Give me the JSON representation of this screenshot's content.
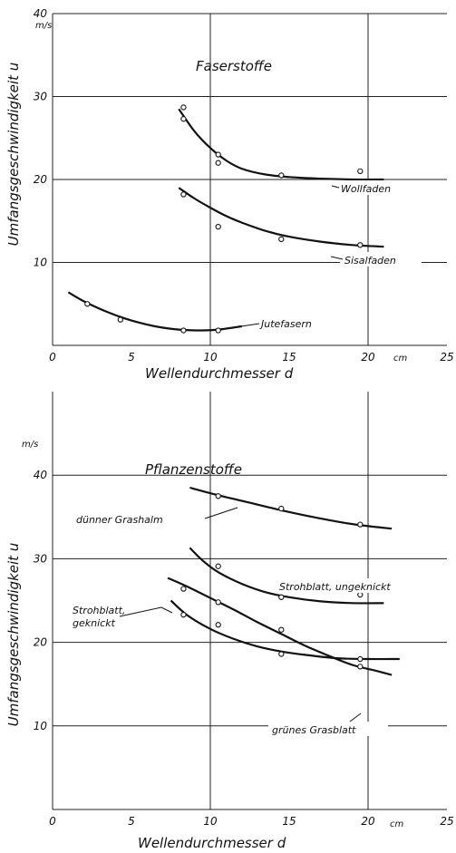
{
  "chart_data": [
    {
      "type": "line",
      "title": "Faserstoffe",
      "xlabel": "Wellendurchmesser d",
      "xunit": "cm",
      "ylabel": "Umfangsgeschwindigkeit u",
      "yunit": "m/s",
      "xlim": [
        0,
        25
      ],
      "ylim": [
        0,
        40
      ],
      "xticks": [
        "0",
        "5",
        "10",
        "15",
        "20",
        "25"
      ],
      "yticks": [
        "10",
        "20",
        "30",
        "40"
      ],
      "grid": true,
      "series": [
        {
          "name": "Wollfaden",
          "curve": [
            [
              8.0,
              28.5
            ],
            [
              9.0,
              25.8
            ],
            [
              10.0,
              23.8
            ],
            [
              11.0,
              22.3
            ],
            [
              12.0,
              21.3
            ],
            [
              13.5,
              20.6
            ],
            [
              15.0,
              20.3
            ],
            [
              17.0,
              20.1
            ],
            [
              19.0,
              20.0
            ],
            [
              21.0,
              20.0
            ]
          ],
          "points": [
            [
              8.3,
              28.7
            ],
            [
              8.3,
              27.3
            ],
            [
              10.5,
              23.0
            ],
            [
              10.5,
              22.0
            ],
            [
              14.5,
              20.5
            ],
            [
              19.5,
              21.0
            ]
          ]
        },
        {
          "name": "Sisalfaden",
          "curve": [
            [
              8.0,
              19.0
            ],
            [
              9.0,
              17.7
            ],
            [
              10.0,
              16.6
            ],
            [
              11.0,
              15.6
            ],
            [
              12.0,
              14.8
            ],
            [
              13.5,
              13.8
            ],
            [
              15.0,
              13.1
            ],
            [
              17.0,
              12.5
            ],
            [
              19.0,
              12.1
            ],
            [
              21.0,
              11.9
            ]
          ],
          "points": [
            [
              8.3,
              18.2
            ],
            [
              10.5,
              14.3
            ],
            [
              14.5,
              12.8
            ],
            [
              19.5,
              12.1
            ]
          ]
        },
        {
          "name": "Jutefasern",
          "curve": [
            [
              1.0,
              6.4
            ],
            [
              2.0,
              5.3
            ],
            [
              3.5,
              4.0
            ],
            [
              5.0,
              3.0
            ],
            [
              6.5,
              2.3
            ],
            [
              8.0,
              1.9
            ],
            [
              9.5,
              1.8
            ],
            [
              10.5,
              1.9
            ],
            [
              12.0,
              2.3
            ]
          ],
          "points": [
            [
              2.2,
              5.0
            ],
            [
              4.3,
              3.1
            ],
            [
              8.3,
              1.8
            ],
            [
              10.5,
              1.8
            ]
          ]
        }
      ]
    },
    {
      "type": "line",
      "title": "Pflanzenstoffe",
      "xlabel": "Wellendurchmesser d",
      "xunit": "cm",
      "ylabel": "Umfangsgeschwindigkeit u",
      "yunit": "m/s",
      "xlim": [
        0,
        25
      ],
      "ylim": [
        0,
        50
      ],
      "xticks": [
        "0",
        "5",
        "10",
        "15",
        "20",
        "25"
      ],
      "yticks": [
        "10",
        "20",
        "30",
        "40"
      ],
      "grid": true,
      "series": [
        {
          "name": "dünner Grashalm",
          "curve": [
            [
              8.7,
              38.5
            ],
            [
              10.5,
              37.6
            ],
            [
              12.5,
              36.7
            ],
            [
              14.5,
              35.8
            ],
            [
              16.5,
              35.0
            ],
            [
              18.5,
              34.3
            ],
            [
              20.0,
              33.9
            ],
            [
              21.5,
              33.6
            ]
          ],
          "points": [
            [
              10.5,
              37.5
            ],
            [
              14.5,
              36.0
            ],
            [
              19.5,
              34.1
            ]
          ]
        },
        {
          "name": "Strohblatt, ungeknickt",
          "curve": [
            [
              8.7,
              31.3
            ],
            [
              9.5,
              29.8
            ],
            [
              10.5,
              28.4
            ],
            [
              12.0,
              27.0
            ],
            [
              13.5,
              26.0
            ],
            [
              15.0,
              25.4
            ],
            [
              17.0,
              24.9
            ],
            [
              19.0,
              24.7
            ],
            [
              21.0,
              24.7
            ]
          ],
          "points": [
            [
              10.5,
              29.1
            ],
            [
              14.5,
              25.4
            ],
            [
              19.5,
              25.7
            ]
          ]
        },
        {
          "name": "grünes Grasblatt",
          "curve": [
            [
              7.3,
              27.7
            ],
            [
              8.5,
              26.7
            ],
            [
              10.0,
              25.3
            ],
            [
              11.5,
              23.9
            ],
            [
              13.0,
              22.4
            ],
            [
              14.5,
              21.0
            ],
            [
              16.0,
              19.6
            ],
            [
              17.5,
              18.4
            ],
            [
              19.0,
              17.3
            ],
            [
              20.5,
              16.6
            ],
            [
              21.5,
              16.1
            ]
          ],
          "points": [
            [
              8.3,
              26.4
            ],
            [
              10.5,
              24.8
            ],
            [
              14.5,
              21.5
            ],
            [
              19.5,
              17.1
            ]
          ]
        },
        {
          "name": "Strohblatt, geknickt",
          "curve": [
            [
              7.5,
              25.0
            ],
            [
              8.5,
              23.3
            ],
            [
              10.0,
              21.6
            ],
            [
              11.5,
              20.4
            ],
            [
              13.0,
              19.5
            ],
            [
              14.5,
              18.9
            ],
            [
              16.0,
              18.5
            ],
            [
              18.0,
              18.1
            ],
            [
              20.0,
              18.0
            ],
            [
              22.0,
              18.0
            ]
          ],
          "points": [
            [
              8.3,
              23.3
            ],
            [
              10.5,
              22.1
            ],
            [
              14.5,
              18.6
            ],
            [
              19.5,
              18.0
            ]
          ]
        }
      ]
    }
  ]
}
